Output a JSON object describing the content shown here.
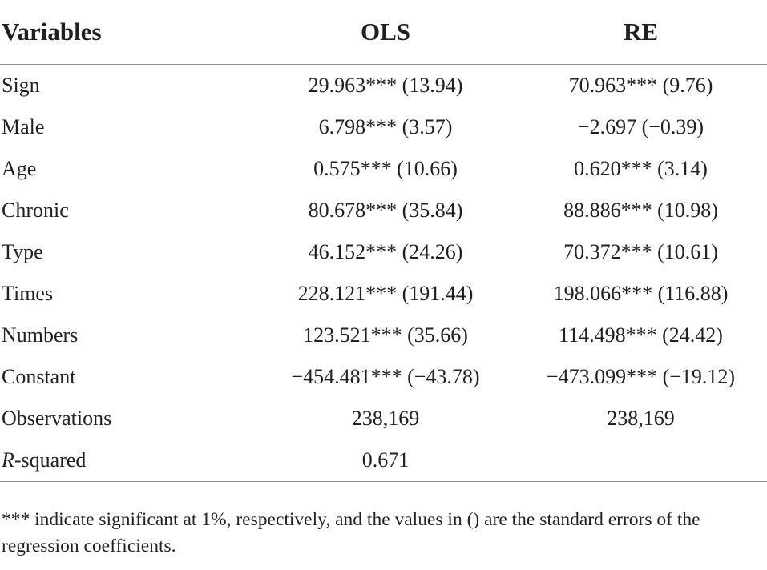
{
  "table": {
    "headers": [
      "Variables",
      "OLS",
      "RE"
    ],
    "rows": [
      {
        "variable": "Sign",
        "ols": "29.963*** (13.94)",
        "re": "70.963*** (9.76)"
      },
      {
        "variable": "Male",
        "ols": "6.798*** (3.57)",
        "re": "−2.697 (−0.39)"
      },
      {
        "variable": "Age",
        "ols": "0.575*** (10.66)",
        "re": "0.620*** (3.14)"
      },
      {
        "variable": "Chronic",
        "ols": "80.678*** (35.84)",
        "re": "88.886*** (10.98)"
      },
      {
        "variable": "Type",
        "ols": "46.152*** (24.26)",
        "re": "70.372*** (10.61)"
      },
      {
        "variable": "Times",
        "ols": "228.121*** (191.44)",
        "re": "198.066*** (116.88)"
      },
      {
        "variable": "Numbers",
        "ols": "123.521*** (35.66)",
        "re": "114.498*** (24.42)"
      },
      {
        "variable": "Constant",
        "ols": "−454.481*** (−43.78)",
        "re": "−473.099*** (−19.12)"
      },
      {
        "variable": "Observations",
        "ols": "238,169",
        "re": "238,169"
      }
    ],
    "rsquared": {
      "variable_italic": "R",
      "variable_rest": "-squared",
      "ols": "0.671",
      "re": ""
    }
  },
  "footnote": "*** indicate significant at 1%, respectively, and the values in () are the standard errors of the regression coefficients."
}
